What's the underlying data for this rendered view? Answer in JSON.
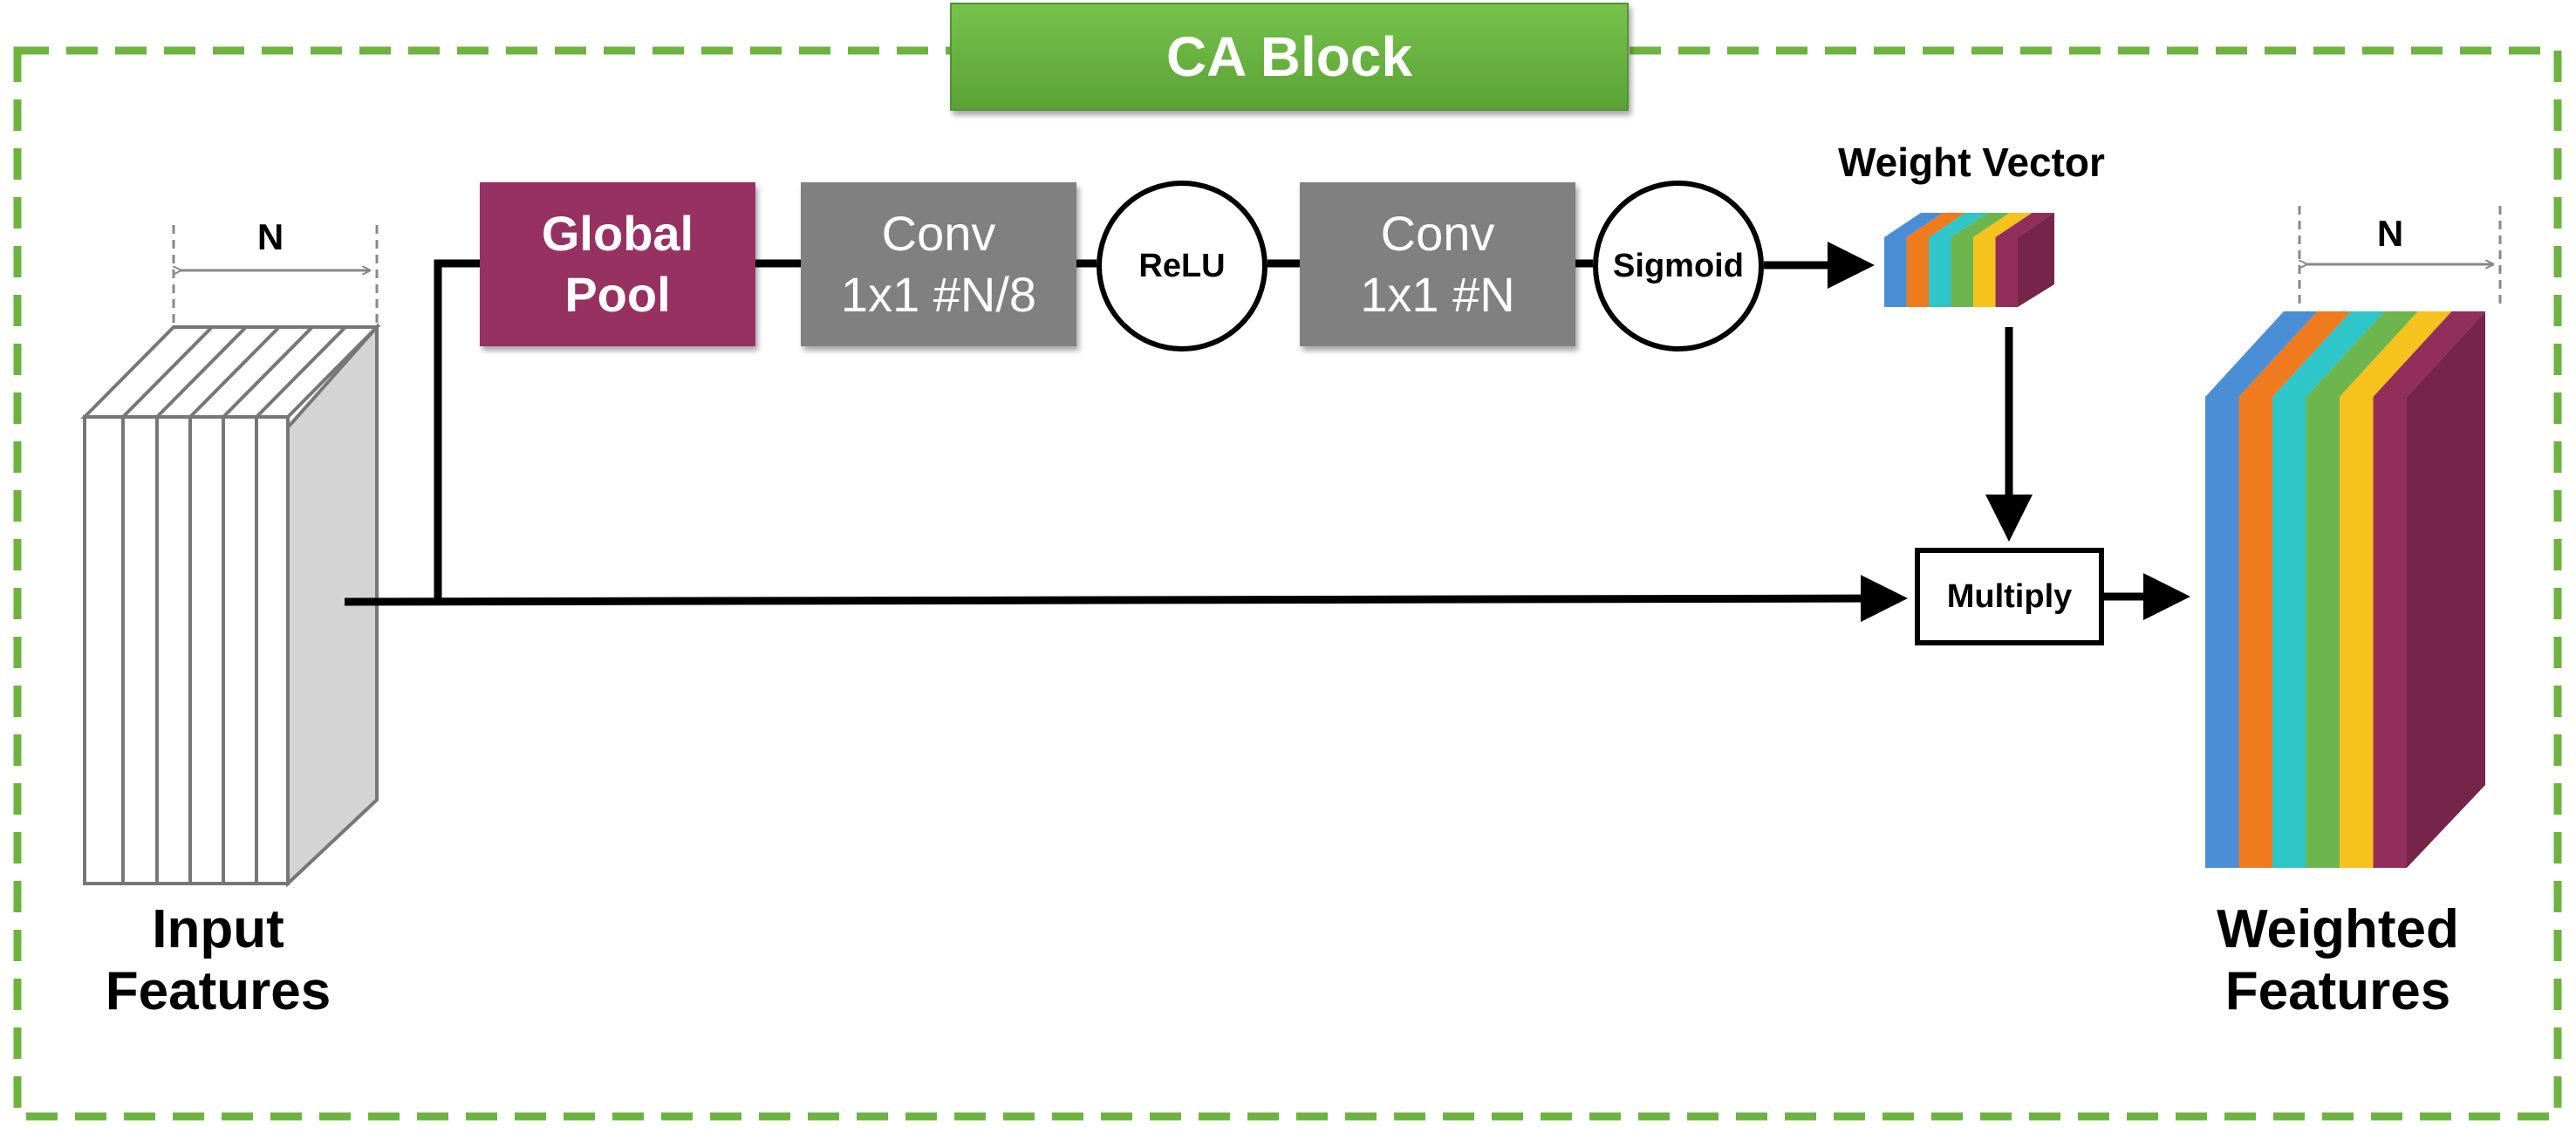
{
  "title": "CA Block",
  "nodes": {
    "global_pool": [
      "Global",
      "Pool"
    ],
    "conv1": [
      "Conv",
      "1x1 #N/8"
    ],
    "relu": "ReLU",
    "conv2": [
      "Conv",
      "1x1 #N"
    ],
    "sigmoid": "Sigmoid",
    "multiply": "Multiply"
  },
  "labels": {
    "weight_vector": "Weight Vector",
    "input": [
      "Input",
      "Features"
    ],
    "output": [
      "Weighted",
      "Features"
    ],
    "n_left": "N",
    "n_right": "N"
  },
  "colors": {
    "block_border": "#6db33f",
    "title_fill": "#6bb844",
    "global_pool": "#963162",
    "conv": "#808080",
    "channels": [
      "#4a8fd6",
      "#f07a1e",
      "#2ec6c8",
      "#6db64e",
      "#f6c21c",
      "#922e5c"
    ]
  }
}
